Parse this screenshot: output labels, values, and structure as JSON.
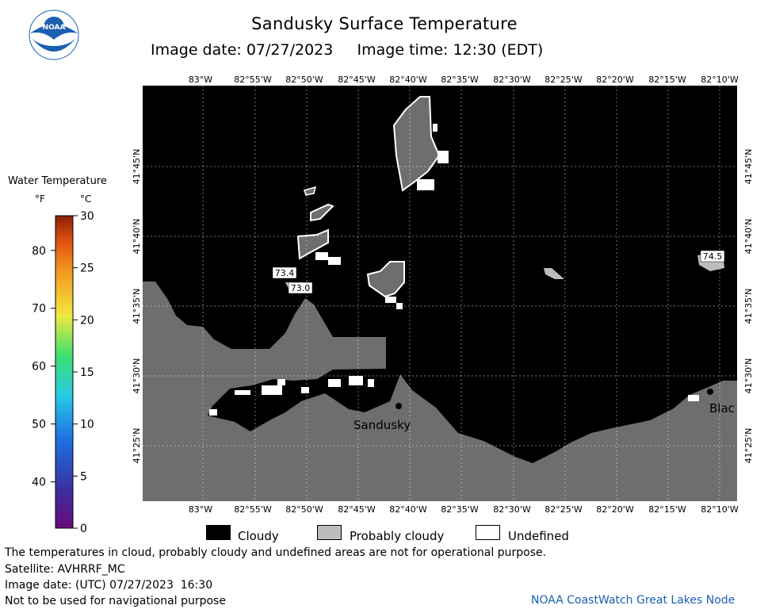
{
  "header": {
    "title": "Sandusky Surface Temperature",
    "image_date_label": "Image date: 07/27/2023",
    "image_time_label": "Image time: 12:30 (EDT)"
  },
  "logo": {
    "text": "NOAA",
    "icon": "noaa-logo-icon"
  },
  "color_scale": {
    "title": "Water Temperature",
    "unit_f": "°F",
    "unit_c": "°C",
    "fahrenheit_ticks": [
      "40",
      "50",
      "60",
      "70",
      "80"
    ],
    "celsius_ticks": [
      "0",
      "5",
      "10",
      "15",
      "20",
      "25",
      "30"
    ],
    "colors": [
      "#6a0a7a",
      "#3c2fa0",
      "#1d6fe0",
      "#28c8e8",
      "#3ce070",
      "#f0e840",
      "#f29a20",
      "#e05010",
      "#8a2008"
    ]
  },
  "map": {
    "longitude_labels": [
      "83°W",
      "82°55'W",
      "82°50'W",
      "82°45'W",
      "82°40'W",
      "82°35'W",
      "82°30'W",
      "82°25'W",
      "82°20'W",
      "82°15'W",
      "82°10'W"
    ],
    "latitude_labels": [
      "41°45'N",
      "41°40'N",
      "41°35'N",
      "41°30'N",
      "41°25'N"
    ],
    "place_labels": [
      "Sandusky",
      "Blac"
    ],
    "temperature_labels": [
      "73.4",
      "73.0",
      "74.5"
    ],
    "colors": {
      "cloudy": "#000000",
      "probably_cloudy": "#bcbcbc",
      "land": "#6e6e6e",
      "undefined": "#ffffff"
    }
  },
  "map_legend": {
    "cloudy": "Cloudy",
    "probably_cloudy": "Probably cloudy",
    "undefined": "Undefined"
  },
  "notes": {
    "disclaimer": "The temperatures in cloud, probably cloudy and undefined areas are not for operational purpose.",
    "satellite": "Satellite: AVHRRF_MC",
    "utc_date": "Image date: (UTC) 07/27/2023  16:30",
    "navigation": "Not to be used for navigational purpose",
    "credit": "NOAA CoastWatch Great Lakes Node"
  }
}
